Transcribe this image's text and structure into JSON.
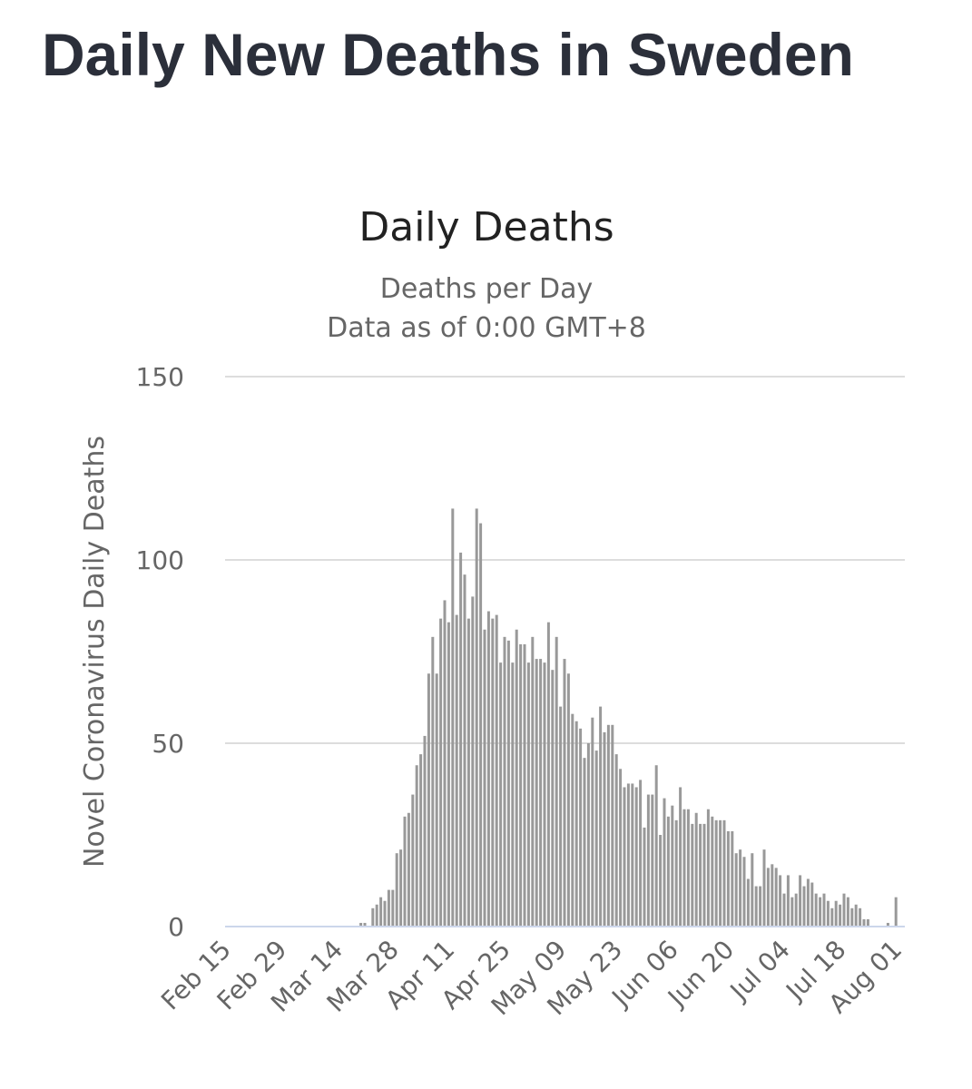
{
  "page": {
    "title": "Daily New Deaths in Sweden"
  },
  "chart_data": {
    "type": "bar",
    "title": "Daily Deaths",
    "subtitle": "Deaths per Day",
    "subtitle2": "Data as of 0:00 GMT+8",
    "ylabel": "Novel Coronavirus Daily Deaths",
    "xlabel": "",
    "ylim": [
      0,
      150
    ],
    "yticks": [
      0,
      50,
      100,
      150
    ],
    "grid": true,
    "start_date": "Feb 15",
    "xtick_labels": [
      "Feb 15",
      "Feb 29",
      "Mar 14",
      "Mar 28",
      "Apr 11",
      "Apr 25",
      "May 09",
      "May 23",
      "Jun 06",
      "Jun 20",
      "Jul 04",
      "Jul 18",
      "Aug 01"
    ],
    "xtick_day_index": [
      0,
      14,
      28,
      42,
      56,
      70,
      84,
      98,
      112,
      126,
      140,
      154,
      168
    ],
    "bar_color": "#999999",
    "grid_color": "#dddddd",
    "axis_color": "#ccd6eb",
    "values": [
      0,
      0,
      0,
      0,
      0,
      0,
      0,
      0,
      0,
      0,
      0,
      0,
      0,
      0,
      0,
      0,
      0,
      0,
      0,
      0,
      0,
      0,
      0,
      0,
      0,
      0,
      0,
      0,
      0,
      0,
      0,
      0,
      0,
      0,
      1,
      1,
      0,
      5,
      6,
      8,
      7,
      10,
      10,
      20,
      21,
      30,
      31,
      36,
      44,
      47,
      52,
      69,
      79,
      69,
      84,
      89,
      83,
      114,
      85,
      102,
      96,
      84,
      90,
      114,
      110,
      81,
      86,
      84,
      85,
      72,
      79,
      78,
      72,
      81,
      77,
      77,
      72,
      79,
      73,
      73,
      72,
      83,
      70,
      79,
      60,
      73,
      69,
      58,
      56,
      54,
      46,
      50,
      57,
      48,
      60,
      53,
      55,
      55,
      47,
      43,
      38,
      39,
      39,
      38,
      40,
      27,
      36,
      36,
      44,
      25,
      35,
      30,
      33,
      29,
      38,
      32,
      32,
      28,
      31,
      28,
      28,
      32,
      30,
      29,
      29,
      29,
      26,
      26,
      20,
      21,
      19,
      13,
      20,
      11,
      11,
      21,
      16,
      17,
      16,
      14,
      9,
      14,
      8,
      9,
      14,
      11,
      13,
      12,
      9,
      8,
      9,
      7,
      5,
      7,
      6,
      9,
      8,
      5,
      6,
      5,
      2,
      2,
      0,
      0,
      0,
      0,
      1,
      0,
      8
    ]
  }
}
